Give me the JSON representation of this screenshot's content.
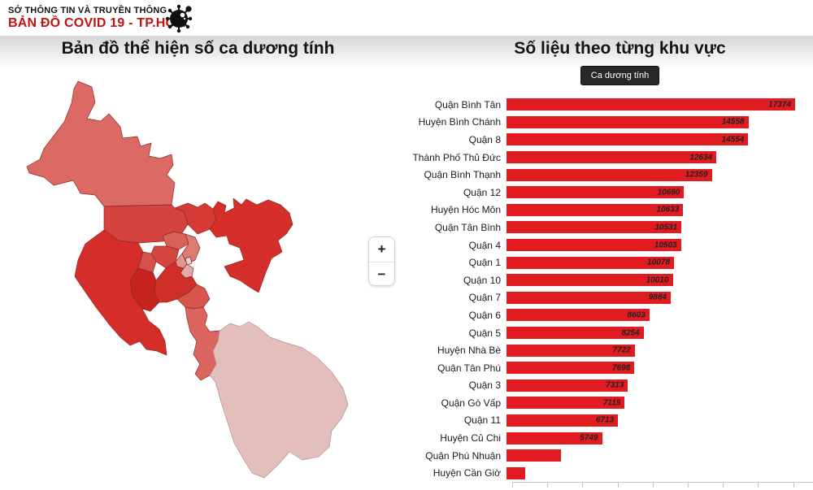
{
  "header": {
    "agency": "SỞ THÔNG TIN VÀ TRUYỀN THÔNG",
    "title": "BẢN ĐỒ  COVID 19 - TP.HCM",
    "title_color": "#c2130f"
  },
  "left_panel": {
    "title": "Bản đồ thể hiện số ca dương tính"
  },
  "right_panel": {
    "title": "Số liệu theo từng khu vực",
    "filter_button_label": "Ca dương tính"
  },
  "map": {
    "zoom_in_label": "+",
    "zoom_out_label": "−",
    "district_fills": {
      "cu_chi": "#dc6a64",
      "hoc_mon": "#d5433e",
      "quan_12": "#d63a35",
      "thu_duc": "#d62e2a",
      "binh_chanh": "#d52d29",
      "go_vap": "#d96158",
      "binh_thanh": "#dd7b72",
      "tan_binh": "#d4453f",
      "tan_phu": "#d5524c",
      "binh_tan": "#c6231f",
      "phu_nhuan": "#e0968e",
      "quan_1_3_10": "#e3aba4",
      "center_light": "#ecd0cd",
      "quan_4_5_6_8_11": "#cf2e29",
      "quan_7": "#d8554e",
      "nha_be": "#dc655f",
      "can_gio": "#e3bfbc"
    }
  },
  "chart_data": {
    "type": "bar",
    "orientation": "horizontal",
    "title": "Số liệu theo từng khu vực",
    "series_label": "Ca dương tính",
    "bar_color": "#e11b20",
    "xlim": [
      0,
      18000
    ],
    "grid": false,
    "legend_position": "none",
    "categories": [
      "Quận Bình Tân",
      "Huyện Bình Chánh",
      "Quận 8",
      "Thành Phố Thủ Đức",
      "Quận Bình Thạnh",
      "Quận 12",
      "Huyện Hóc Môn",
      "Quận Tân Bình",
      "Quận 4",
      "Quận 1",
      "Quận 10",
      "Quận 7",
      "Quận 6",
      "Quận 5",
      "Huyện Nhà Bè",
      "Quận Tân Phú",
      "Quận 3",
      "Quận Gò Vấp",
      "Quận 11",
      "Huyện Củ Chi",
      "Quận Phú Nhuận",
      "Huyện Cần Giờ"
    ],
    "values": [
      17374,
      14558,
      14554,
      12634,
      12359,
      10690,
      10633,
      10531,
      10503,
      10078,
      10010,
      9884,
      8603,
      8254,
      7722,
      7698,
      7313,
      7115,
      6713,
      5749,
      3270,
      1120
    ],
    "value_labels": [
      "17374",
      "14558",
      "14554",
      "12634",
      "12359",
      "10690",
      "10633",
      "10531",
      "10503",
      "10078",
      "10010",
      "9884",
      "8603",
      "8254",
      "7722",
      "7698",
      "7313",
      "7115",
      "6713",
      "5749",
      "",
      ""
    ]
  }
}
